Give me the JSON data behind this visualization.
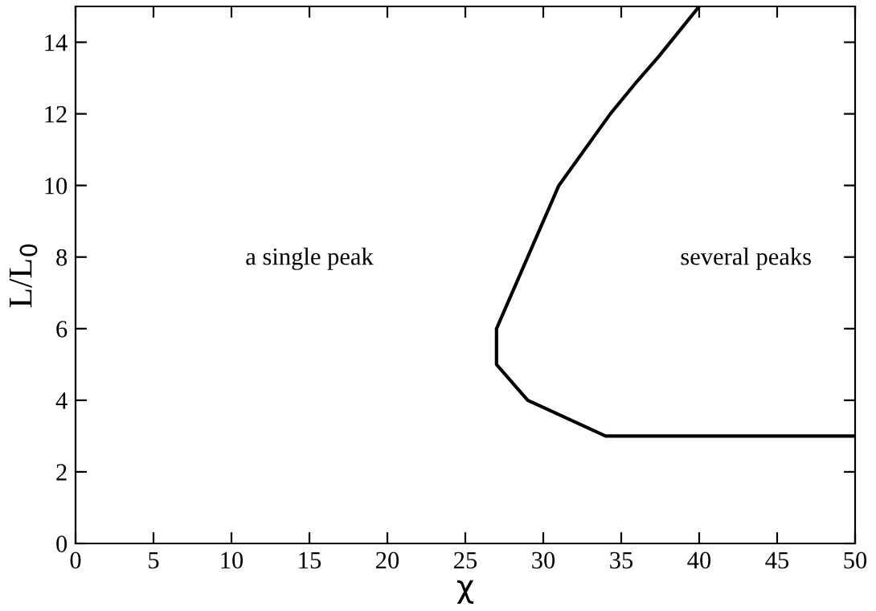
{
  "chart_data": {
    "type": "line",
    "xlabel": "χ",
    "ylabel": "L/L$_{0}$",
    "series": [
      {
        "color": "#000000",
        "x": [
          50,
          34,
          29,
          27,
          27,
          30,
          31,
          34.3,
          36,
          37.4,
          40
        ],
        "values": [
          3,
          3,
          4,
          5,
          6,
          9,
          10,
          12,
          12.9,
          13.6,
          15
        ]
      }
    ],
    "xlim": [
      0,
      50
    ],
    "ylim": [
      0,
      15
    ],
    "xticks": [
      0,
      5,
      10,
      15,
      20,
      25,
      30,
      35,
      40,
      45,
      50
    ],
    "yticks": [
      0,
      2,
      4,
      6,
      8,
      10,
      12,
      14
    ],
    "annotations": [
      "a single peak",
      "several peaks"
    ],
    "grid": false,
    "legend": false,
    "marker": "none",
    "line_style": "solid"
  }
}
